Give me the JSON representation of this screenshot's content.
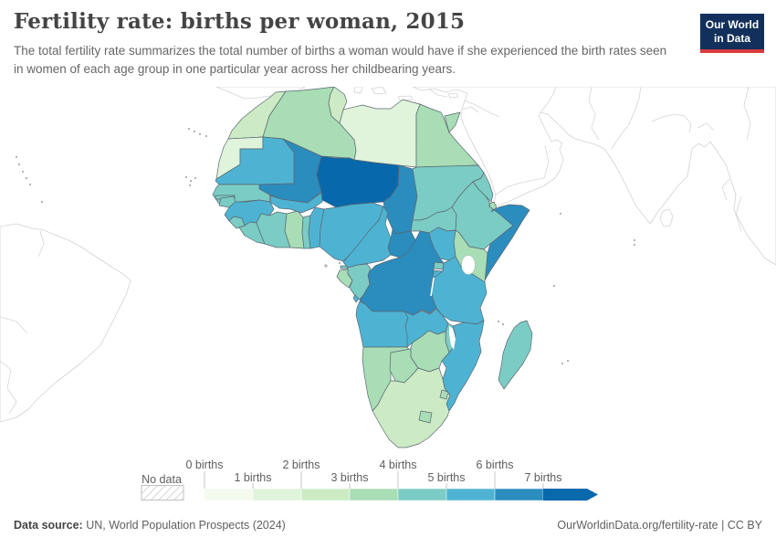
{
  "header": {
    "title": "Fertility rate: births per woman, 2015",
    "subtitle": "The total fertility rate summarizes the total number of births a woman would have if she experienced the birth rates seen in women of each age group in one particular year across her childbearing years.",
    "logo": {
      "line1": "Our World",
      "line2": "in Data",
      "bg_color": "#12305b",
      "accent_color": "#d93a3e"
    }
  },
  "legend": {
    "no_data_label": "No data",
    "bins": [
      {
        "label": "0 births",
        "color": "#f4faee"
      },
      {
        "label": "1 births",
        "color": "#e0f3db"
      },
      {
        "label": "2 births",
        "color": "#ccebc5"
      },
      {
        "label": "3 births",
        "color": "#a8ddb5"
      },
      {
        "label": "4 births",
        "color": "#7bccc4"
      },
      {
        "label": "5 births",
        "color": "#4eb3d3"
      },
      {
        "label": "6 births",
        "color": "#2b8cbe"
      },
      {
        "label": "7 births",
        "color": "#0868ac"
      }
    ]
  },
  "footer": {
    "source_label": "Data source:",
    "source_text": " UN, World Population Prospects (2024)",
    "link_text": "OurWorldinData.org/fertility-rate | CC BY"
  },
  "chart_data": {
    "type": "choropleth_map",
    "title": "Fertility rate: births per woman, 2015",
    "year": 2015,
    "unit": "births per woman",
    "region_shown": "Africa (world map crop with neighbouring continents unshaded)",
    "legend_position": "bottom",
    "no_data_style": "hatched",
    "color_scale": {
      "type": "threshold",
      "bin_starts": [
        0,
        1,
        2,
        3,
        4,
        5,
        6,
        7
      ],
      "palette": [
        "#f4faee",
        "#e0f3db",
        "#ccebc5",
        "#a8ddb5",
        "#7bccc4",
        "#4eb3d3",
        "#2b8cbe",
        "#0868ac"
      ]
    },
    "countries": [
      {
        "id": "morocco",
        "name": "Morocco",
        "value": 2.6
      },
      {
        "id": "western-sahara",
        "name": "Western Sahara",
        "value": 1.9
      },
      {
        "id": "algeria",
        "name": "Algeria",
        "value": 3.1
      },
      {
        "id": "tunisia",
        "name": "Tunisia",
        "value": 2.2
      },
      {
        "id": "libya",
        "name": "Libya",
        "value": 1.9
      },
      {
        "id": "egypt",
        "name": "Egypt",
        "value": 3.3
      },
      {
        "id": "mauritania",
        "name": "Mauritania",
        "value": 5.1
      },
      {
        "id": "mali",
        "name": "Mali",
        "value": 6.2
      },
      {
        "id": "niger",
        "name": "Niger",
        "value": 7.3
      },
      {
        "id": "chad",
        "name": "Chad",
        "value": 6.3
      },
      {
        "id": "sudan",
        "name": "Sudan",
        "value": 4.8
      },
      {
        "id": "eritrea",
        "name": "Eritrea",
        "value": 4.1
      },
      {
        "id": "djibouti",
        "name": "Djibouti",
        "value": 3.0
      },
      {
        "id": "ethiopia",
        "name": "Ethiopia",
        "value": 4.5
      },
      {
        "id": "somalia",
        "name": "Somalia",
        "value": 6.4
      },
      {
        "id": "senegal",
        "name": "Senegal",
        "value": 4.9
      },
      {
        "id": "gambia",
        "name": "Gambia",
        "value": 4.9
      },
      {
        "id": "guinea-bissau",
        "name": "Guinea-Bissau",
        "value": 4.8
      },
      {
        "id": "guinea",
        "name": "Guinea",
        "value": 5.1
      },
      {
        "id": "sierra-leone",
        "name": "Sierra Leone",
        "value": 4.5
      },
      {
        "id": "liberia",
        "name": "Liberia",
        "value": 4.6
      },
      {
        "id": "ivory-coast",
        "name": "Cote d'Ivoire",
        "value": 4.9
      },
      {
        "id": "ghana",
        "name": "Ghana",
        "value": 3.9
      },
      {
        "id": "togo",
        "name": "Togo",
        "value": 4.5
      },
      {
        "id": "benin",
        "name": "Benin",
        "value": 5.2
      },
      {
        "id": "burkina-faso",
        "name": "Burkina Faso",
        "value": 5.5
      },
      {
        "id": "nigeria",
        "name": "Nigeria",
        "value": 5.5
      },
      {
        "id": "cameroon",
        "name": "Cameroon",
        "value": 5.1
      },
      {
        "id": "car",
        "name": "Central African Republic",
        "value": 6.1
      },
      {
        "id": "south-sudan",
        "name": "South Sudan",
        "value": 4.9
      },
      {
        "id": "kenya",
        "name": "Kenya",
        "value": 3.9
      },
      {
        "id": "uganda",
        "name": "Uganda",
        "value": 5.8
      },
      {
        "id": "rwanda",
        "name": "Rwanda",
        "value": 4.0
      },
      {
        "id": "burundi",
        "name": "Burundi",
        "value": 5.5
      },
      {
        "id": "tanzania",
        "name": "Tanzania",
        "value": 5.2
      },
      {
        "id": "drc",
        "name": "Democratic Republic of Congo",
        "value": 6.2
      },
      {
        "id": "congo",
        "name": "Congo",
        "value": 4.7
      },
      {
        "id": "gabon",
        "name": "Gabon",
        "value": 3.9
      },
      {
        "id": "eq-guinea",
        "name": "Equatorial Guinea",
        "value": 4.6
      },
      {
        "id": "angola",
        "name": "Angola",
        "value": 5.7
      },
      {
        "id": "zambia",
        "name": "Zambia",
        "value": 5.2
      },
      {
        "id": "malawi",
        "name": "Malawi",
        "value": 4.9
      },
      {
        "id": "mozambique",
        "name": "Mozambique",
        "value": 5.2
      },
      {
        "id": "zimbabwe",
        "name": "Zimbabwe",
        "value": 3.9
      },
      {
        "id": "madagascar",
        "name": "Madagascar",
        "value": 4.4
      },
      {
        "id": "namibia",
        "name": "Namibia",
        "value": 3.5
      },
      {
        "id": "botswana",
        "name": "Botswana",
        "value": 3.0
      },
      {
        "id": "south-africa",
        "name": "South Africa",
        "value": 2.5
      },
      {
        "id": "lesotho",
        "name": "Lesotho",
        "value": 3.2
      },
      {
        "id": "eswatini",
        "name": "Eswatini",
        "value": 3.3
      }
    ]
  }
}
